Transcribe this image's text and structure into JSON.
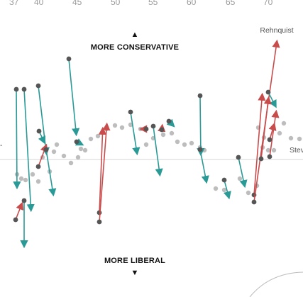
{
  "chart_data": {
    "type": "scatter",
    "x_ticks": [
      "37",
      "40",
      "45",
      "50",
      "55",
      "60",
      "65",
      "70"
    ],
    "labels": {
      "up": "MORE CONSERVATIVE",
      "down": "MORE LIBERAL",
      "up_arrow": "▲",
      "down_arrow": "▼",
      "rehnquist": "Rehnquist",
      "right_partial": "Stev",
      "left_partial": "-"
    },
    "colors": {
      "rightward": "#c94c4c",
      "leftward": "#2a9a96",
      "point": "#555555",
      "background_point": "#bdbdbd",
      "baseline": "#d6d6d6"
    },
    "background_points": [
      [
        24,
        246
      ],
      [
        30,
        252
      ],
      [
        36,
        254
      ],
      [
        46,
        246
      ],
      [
        54,
        256
      ],
      [
        60,
        222
      ],
      [
        70,
        242
      ],
      [
        76,
        214
      ],
      [
        80,
        204
      ],
      [
        90,
        220
      ],
      [
        100,
        230
      ],
      [
        110,
        222
      ],
      [
        114,
        210
      ],
      [
        120,
        212
      ],
      [
        128,
        196
      ],
      [
        138,
        192
      ],
      [
        150,
        182
      ],
      [
        162,
        177
      ],
      [
        172,
        180
      ],
      [
        184,
        176
      ],
      [
        198,
        182
      ],
      [
        206,
        204
      ],
      [
        216,
        195
      ],
      [
        230,
        190
      ],
      [
        242,
        188
      ],
      [
        250,
        200
      ],
      [
        260,
        204
      ],
      [
        270,
        202
      ],
      [
        282,
        208
      ],
      [
        288,
        212
      ],
      [
        304,
        266
      ],
      [
        316,
        268
      ],
      [
        338,
        252
      ],
      [
        350,
        272
      ],
      [
        362,
        262
      ],
      [
        370,
        208
      ],
      [
        378,
        212
      ],
      [
        386,
        212
      ],
      [
        394,
        188
      ],
      [
        400,
        174
      ],
      [
        410,
        195
      ],
      [
        422,
        196
      ],
      [
        372,
        194
      ],
      [
        364,
        180
      ]
    ],
    "movements": [
      {
        "from": [
          22,
          310
        ],
        "to": [
          33,
          282
        ],
        "dir": "right"
      },
      {
        "from": [
          23,
          126
        ],
        "to": [
          24,
          270
        ],
        "dir": "left"
      },
      {
        "from": [
          34,
          126
        ],
        "to": [
          44,
          302
        ],
        "dir": "left"
      },
      {
        "from": [
          34,
          283
        ],
        "to": [
          34,
          353
        ],
        "dir": "left"
      },
      {
        "from": [
          54,
          121
        ],
        "to": [
          66,
          222
        ],
        "dir": "left"
      },
      {
        "from": [
          54,
          235
        ],
        "to": [
          67,
          200
        ],
        "dir": "right"
      },
      {
        "from": [
          55,
          185
        ],
        "to": [
          65,
          206
        ],
        "dir": "left"
      },
      {
        "from": [
          65,
          211
        ],
        "to": [
          76,
          280
        ],
        "dir": "left"
      },
      {
        "from": [
          97,
          83
        ],
        "to": [
          108,
          195
        ],
        "dir": "left"
      },
      {
        "from": [
          108,
          200
        ],
        "to": [
          120,
          206
        ],
        "dir": "left"
      },
      {
        "from": [
          140,
          300
        ],
        "to": [
          145,
          176
        ],
        "dir": "right"
      },
      {
        "from": [
          140,
          313
        ],
        "to": [
          151,
          170
        ],
        "dir": "right"
      },
      {
        "from": [
          184,
          158
        ],
        "to": [
          194,
          222
        ],
        "dir": "left"
      },
      {
        "from": [
          216,
          178
        ],
        "to": [
          226,
          252
        ],
        "dir": "left"
      },
      {
        "from": [
          206,
          182
        ],
        "to": [
          195,
          182
        ],
        "dir": "right"
      },
      {
        "from": [
          228,
          183
        ],
        "to": [
          229,
          174
        ],
        "dir": "right"
      },
      {
        "from": [
          238,
          171
        ],
        "to": [
          248,
          181
        ],
        "dir": "left"
      },
      {
        "from": [
          282,
          135
        ],
        "to": [
          283,
          223
        ],
        "dir": "left"
      },
      {
        "from": [
          282,
          211
        ],
        "to": [
          292,
          262
        ],
        "dir": "left"
      },
      {
        "from": [
          316,
          254
        ],
        "to": [
          324,
          284
        ],
        "dir": "left"
      },
      {
        "from": [
          336,
          222
        ],
        "to": [
          346,
          268
        ],
        "dir": "left"
      },
      {
        "from": [
          358,
          275
        ],
        "to": [
          370,
          128
        ],
        "dir": "right"
      },
      {
        "from": [
          358,
          285
        ],
        "to": [
          391,
          53
        ],
        "dir": "right"
      },
      {
        "from": [
          378,
          130
        ],
        "to": [
          391,
          155
        ],
        "dir": "left"
      },
      {
        "from": [
          368,
          224
        ],
        "to": [
          379,
          133
        ],
        "dir": "right"
      },
      {
        "from": [
          380,
          221
        ],
        "to": [
          390,
          152
        ],
        "dir": "right"
      },
      {
        "from": [
          380,
          197
        ],
        "to": [
          388,
          170
        ],
        "dir": "right"
      }
    ]
  }
}
